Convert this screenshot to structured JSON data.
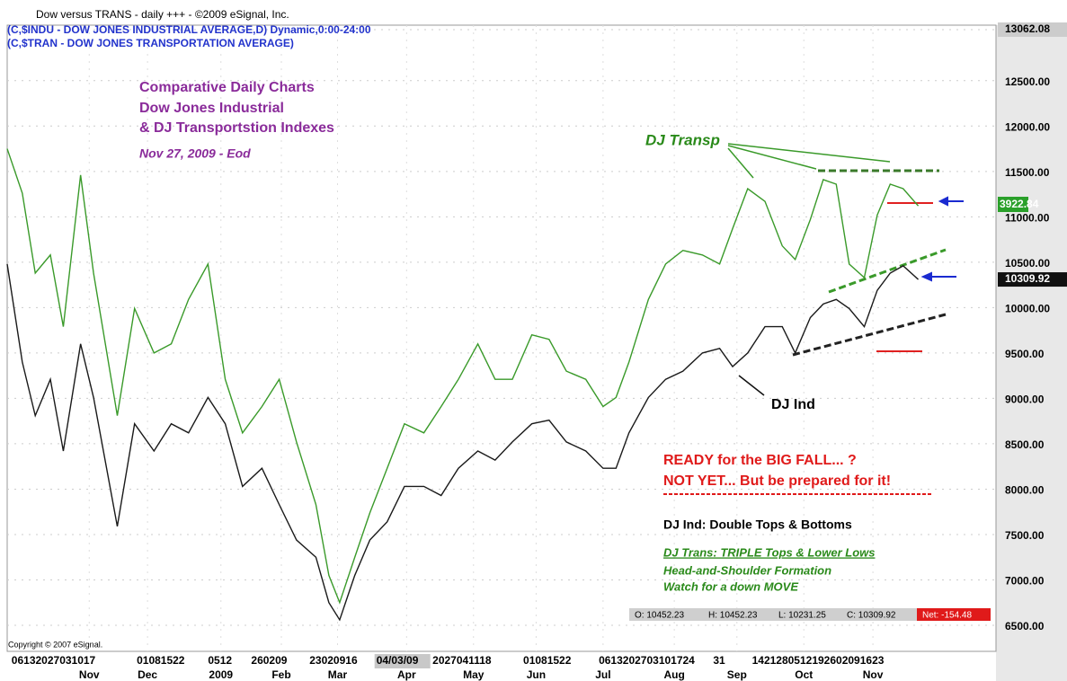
{
  "chart_data": {
    "type": "line",
    "title": "Dow versus TRANS - daily  +++ - ©2009 eSignal, Inc.",
    "x": [
      0,
      7,
      13,
      20,
      26,
      34,
      40,
      51,
      59,
      68,
      76,
      84,
      93,
      101,
      109,
      118,
      126,
      134,
      143,
      149,
      154,
      161,
      168,
      176,
      184,
      193,
      201,
      209,
      218,
      226,
      234,
      243,
      251,
      259,
      268,
      276,
      282,
      288,
      297,
      305,
      313,
      322,
      330,
      336,
      343,
      351,
      359,
      365,
      372,
      378,
      384,
      390,
      397,
      403,
      409,
      415,
      422
    ],
    "series": [
      {
        "name": "(C,$INDU - DOW JONES INDUSTRIAL AVERAGE,D) Dynamic,0:00-24:00",
        "color": "#1a1a1a",
        "values": [
          10480,
          9400,
          8810,
          9210,
          8420,
          9600,
          9010,
          7590,
          8720,
          8420,
          8720,
          8620,
          9010,
          8720,
          8030,
          8230,
          7830,
          7440,
          7250,
          6750,
          6560,
          7050,
          7440,
          7640,
          8030,
          8030,
          7930,
          8230,
          8420,
          8320,
          8520,
          8720,
          8760,
          8520,
          8420,
          8230,
          8230,
          8620,
          9010,
          9210,
          9300,
          9500,
          9550,
          9350,
          9500,
          9790,
          9790,
          9500,
          9890,
          10040,
          10090,
          9990,
          9790,
          10190,
          10380,
          10460,
          10309.92
        ],
        "value_labels": [
          null,
          null,
          null,
          null,
          null,
          null,
          null,
          null,
          null,
          null,
          null,
          null,
          null,
          null,
          null,
          null,
          null,
          null,
          null,
          null,
          null,
          null,
          null,
          null,
          null,
          null,
          null,
          null,
          null,
          null,
          null,
          null,
          null,
          null,
          null,
          null,
          null,
          null,
          null,
          null,
          null,
          null,
          null,
          null,
          null,
          null,
          null,
          null,
          null,
          null,
          null,
          null,
          null,
          null,
          null,
          null,
          "10309.92"
        ]
      },
      {
        "name": "(C,$TRAN - DOW JONES TRANSPORTATION AVERAGE)",
        "color": "#3a9a2a",
        "values": [
          11750,
          11260,
          10380,
          10580,
          9790,
          11460,
          10380,
          8810,
          9990,
          9500,
          9600,
          10090,
          10480,
          9210,
          8620,
          8910,
          9210,
          8520,
          7830,
          7050,
          6750,
          7250,
          7740,
          8230,
          8720,
          8620,
          8910,
          9210,
          9600,
          9210,
          9210,
          9700,
          9650,
          9300,
          9210,
          8910,
          9010,
          9400,
          10090,
          10480,
          10630,
          10580,
          10480,
          10870,
          11310,
          11170,
          10680,
          10530,
          10970,
          11410,
          11360,
          10480,
          10330,
          11020,
          11360,
          11310,
          11120
        ]
      }
    ],
    "xlim": [
      0,
      458
    ],
    "xticks": [
      {
        "value": 38,
        "label": "Nov"
      },
      {
        "value": 65,
        "label": "Dec"
      },
      {
        "value": 99,
        "label": "2009"
      },
      {
        "value": 127,
        "label": "Feb"
      },
      {
        "value": 153,
        "label": "Mar"
      },
      {
        "value": 185,
        "label": "Apr"
      },
      {
        "value": 216,
        "label": "May"
      },
      {
        "value": 245,
        "label": "Jun"
      },
      {
        "value": 276,
        "label": "Jul"
      },
      {
        "value": 309,
        "label": "Aug"
      },
      {
        "value": 338,
        "label": "Sep"
      },
      {
        "value": 369,
        "label": "Oct"
      },
      {
        "value": 401,
        "label": "Nov"
      }
    ],
    "day_labels": [
      {
        "value": 2,
        "label": "06132027031017"
      },
      {
        "value": 60,
        "label": "01081522"
      },
      {
        "value": 93,
        "label": "0512"
      },
      {
        "value": 113,
        "label": "260209"
      },
      {
        "value": 140,
        "label": "23020916"
      },
      {
        "value": 171,
        "label": "04/03/09"
      },
      {
        "value": 197,
        "label": "2027041118"
      },
      {
        "value": 239,
        "label": "01081522"
      },
      {
        "value": 274,
        "label": "0613202703101724"
      },
      {
        "value": 327,
        "label": "31"
      },
      {
        "value": 345,
        "label": "1421280512192602091623"
      }
    ],
    "ylim": [
      6215,
      13062.08
    ],
    "yticks": [
      {
        "value": 6500,
        "label": "6500.00"
      },
      {
        "value": 7000,
        "label": "7000.00"
      },
      {
        "value": 7500,
        "label": "7500.00"
      },
      {
        "value": 8000,
        "label": "8000.00"
      },
      {
        "value": 8500,
        "label": "8500.00"
      },
      {
        "value": 9000,
        "label": "9000.00"
      },
      {
        "value": 9500,
        "label": "9500.00"
      },
      {
        "value": 10000,
        "label": "10000.00"
      },
      {
        "value": 10500,
        "label": "10500.00"
      },
      {
        "value": 11000,
        "label": "11000.00"
      },
      {
        "value": 11500,
        "label": "11500.00"
      },
      {
        "value": 12000,
        "label": "12000.00"
      },
      {
        "value": 12500,
        "label": "12500.00"
      },
      {
        "value": 13062.08,
        "label": "13062.08"
      }
    ],
    "grid": true,
    "annotations": {
      "heading": [
        "Comparative Daily Charts",
        "Dow Jones Industrial",
        "& DJ Transportstion Indexes"
      ],
      "date": "Nov 27, 2009 - Eod",
      "transp": "DJ Transp",
      "ind": "DJ Ind",
      "trans_last": "3922.84",
      "warning": [
        "READY for the BIG FALL... ?",
        "NOT YET... But be prepared for it!"
      ],
      "note1": "DJ Ind:  Double Tops & Bottoms",
      "note2": "DJ Trans:  TRIPLE Tops & Lower Lows",
      "note3": "Head-and-Shoulder Formation",
      "note4": "Watch for a down MOVE",
      "copyright": "Copyright © 2007 eSignal."
    },
    "status": [
      "O: 10452.23",
      "H: 10452.23",
      "L: 10231.25",
      "C: 10309.92",
      "Net: -154.48"
    ]
  }
}
